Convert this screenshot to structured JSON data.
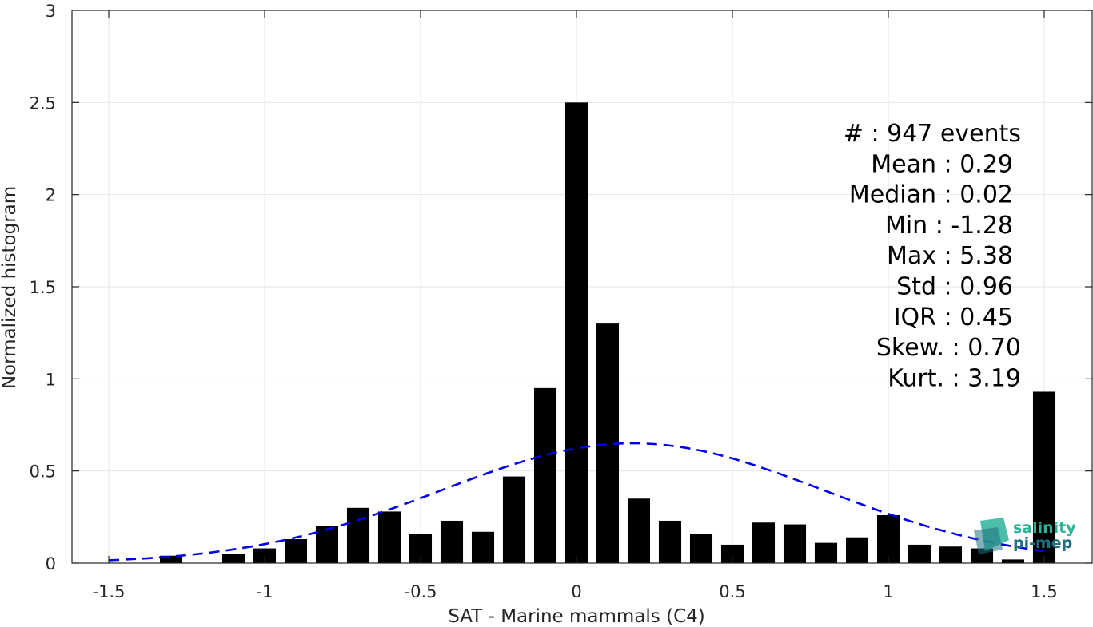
{
  "chart_data": {
    "type": "bar",
    "xlabel": "SAT - Marine mammals (C4)",
    "ylabel": "Normalized histogram",
    "xlim": [
      -1.6,
      1.6
    ],
    "ylim": [
      0,
      3
    ],
    "grid": true,
    "x_ticks": [
      "-1.5",
      "-1",
      "-0.5",
      "0",
      "0.5",
      "1",
      "1.5"
    ],
    "y_ticks": [
      "0",
      "0.5",
      "1",
      "1.5",
      "2",
      "2.5",
      "3"
    ],
    "bin_centers": [
      -1.5,
      -1.4,
      -1.3,
      -1.2,
      -1.1,
      -1.0,
      -0.9,
      -0.8,
      -0.7,
      -0.6,
      -0.5,
      -0.4,
      -0.3,
      -0.2,
      -0.1,
      0.0,
      0.1,
      0.2,
      0.3,
      0.4,
      0.5,
      0.6,
      0.7,
      0.8,
      0.9,
      1.0,
      1.1,
      1.2,
      1.3,
      1.4,
      1.5
    ],
    "values": [
      0.0,
      0.0,
      0.04,
      0.0,
      0.05,
      0.08,
      0.13,
      0.2,
      0.3,
      0.28,
      0.16,
      0.23,
      0.17,
      0.47,
      0.95,
      2.5,
      1.3,
      0.35,
      0.23,
      0.16,
      0.1,
      0.22,
      0.21,
      0.11,
      0.14,
      0.26,
      0.1,
      0.09,
      0.08,
      0.02,
      0.93
    ],
    "bar_color": "#000000",
    "fit": {
      "style": "dashed",
      "color": "#0000ee",
      "mean": 0.18,
      "std": 0.615,
      "peak": 0.65
    },
    "stats": [
      "#  : 947 events",
      "Mean : 0.29",
      "Median : 0.02",
      "Min : -1.28",
      "Max : 5.38",
      "Std : 0.96",
      "IQR : 0.45",
      "Skew. : 0.70",
      "Kurt. : 3.19"
    ]
  },
  "logo": {
    "line1": "salinity",
    "line2": "pi-mep",
    "colors": [
      "#2bb39a",
      "#1f6f80",
      "#3fc7a8"
    ]
  }
}
